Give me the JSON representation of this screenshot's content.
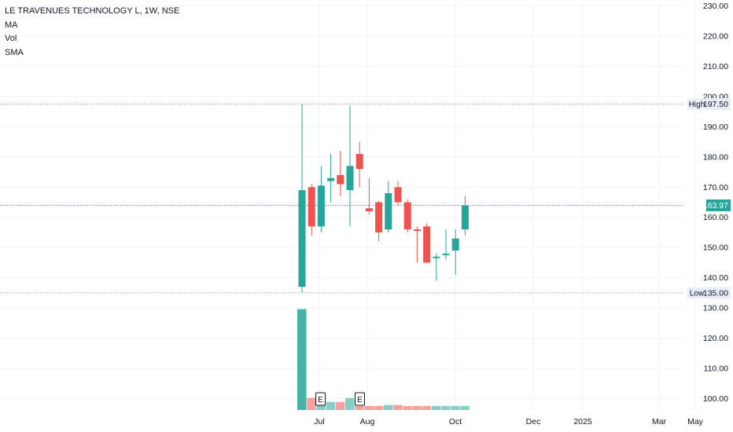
{
  "legend": {
    "title": "LE TRAVENUES TECHNOLOGY L, 1W, NSE",
    "indicators": [
      "MA",
      "Vol",
      "SMA"
    ]
  },
  "price_axis": {
    "ticks": [
      "230.00",
      "220.00",
      "210.00",
      "200.00",
      "190.00",
      "180.00",
      "170.00",
      "160.00",
      "150.00",
      "140.00",
      "130.00",
      "120.00",
      "110.00",
      "100.00"
    ]
  },
  "time_axis": {
    "labels": [
      "Jul",
      "Aug",
      "Oct",
      "Dec",
      "2025",
      "Mar",
      "May"
    ]
  },
  "markers": {
    "high": {
      "label": "High",
      "value": "197.50"
    },
    "low": {
      "label": "Low",
      "value": "135.00"
    },
    "last": {
      "value": "163.97"
    }
  },
  "earnings_markers": [
    "E",
    "E"
  ],
  "colors": {
    "up": "#26a69a",
    "down": "#ef5350",
    "up_volume": "#26a69a",
    "down_volume": "#ef5350",
    "grid": "#f0f3fa",
    "axis_text": "#131722"
  },
  "chart_data": {
    "type": "candlestick",
    "title": "LE TRAVENUES TECHNOLOGY L, 1W, NSE",
    "ylim": [
      97,
      232
    ],
    "candles": [
      {
        "o": 137,
        "h": 197.5,
        "l": 135,
        "c": 169
      },
      {
        "o": 170,
        "h": 171,
        "l": 154,
        "c": 157
      },
      {
        "o": 157,
        "h": 177,
        "l": 155,
        "c": 170.5
      },
      {
        "o": 172,
        "h": 181,
        "l": 165,
        "c": 173
      },
      {
        "o": 174,
        "h": 182,
        "l": 167,
        "c": 171
      },
      {
        "o": 169,
        "h": 197,
        "l": 157,
        "c": 177
      },
      {
        "o": 181,
        "h": 185,
        "l": 170,
        "c": 176
      },
      {
        "o": 163,
        "h": 173,
        "l": 161,
        "c": 162
      },
      {
        "o": 165,
        "h": 165.5,
        "l": 152,
        "c": 155
      },
      {
        "o": 156,
        "h": 172,
        "l": 155,
        "c": 168
      },
      {
        "o": 170,
        "h": 172,
        "l": 164,
        "c": 165
      },
      {
        "o": 165,
        "h": 166,
        "l": 155,
        "c": 156
      },
      {
        "o": 156,
        "h": 157,
        "l": 145,
        "c": 155.5
      },
      {
        "o": 157,
        "h": 158,
        "l": 145,
        "c": 145
      },
      {
        "o": 146.5,
        "h": 148,
        "l": 139,
        "c": 147
      },
      {
        "o": 147.5,
        "h": 156,
        "l": 146,
        "c": 148
      },
      {
        "o": 149,
        "h": 156,
        "l": 141,
        "c": 153
      },
      {
        "o": 156,
        "h": 167,
        "l": 154,
        "c": 163.97
      }
    ],
    "volume": [
      100,
      12,
      10,
      8,
      8,
      12,
      4,
      4,
      4,
      5,
      5,
      4,
      4,
      4,
      4,
      4,
      4,
      4
    ],
    "volume_ylim": [
      0,
      102
    ],
    "x_labels": [
      "Jul",
      "Aug",
      "Oct",
      "Dec",
      "2025",
      "Mar",
      "May"
    ]
  }
}
